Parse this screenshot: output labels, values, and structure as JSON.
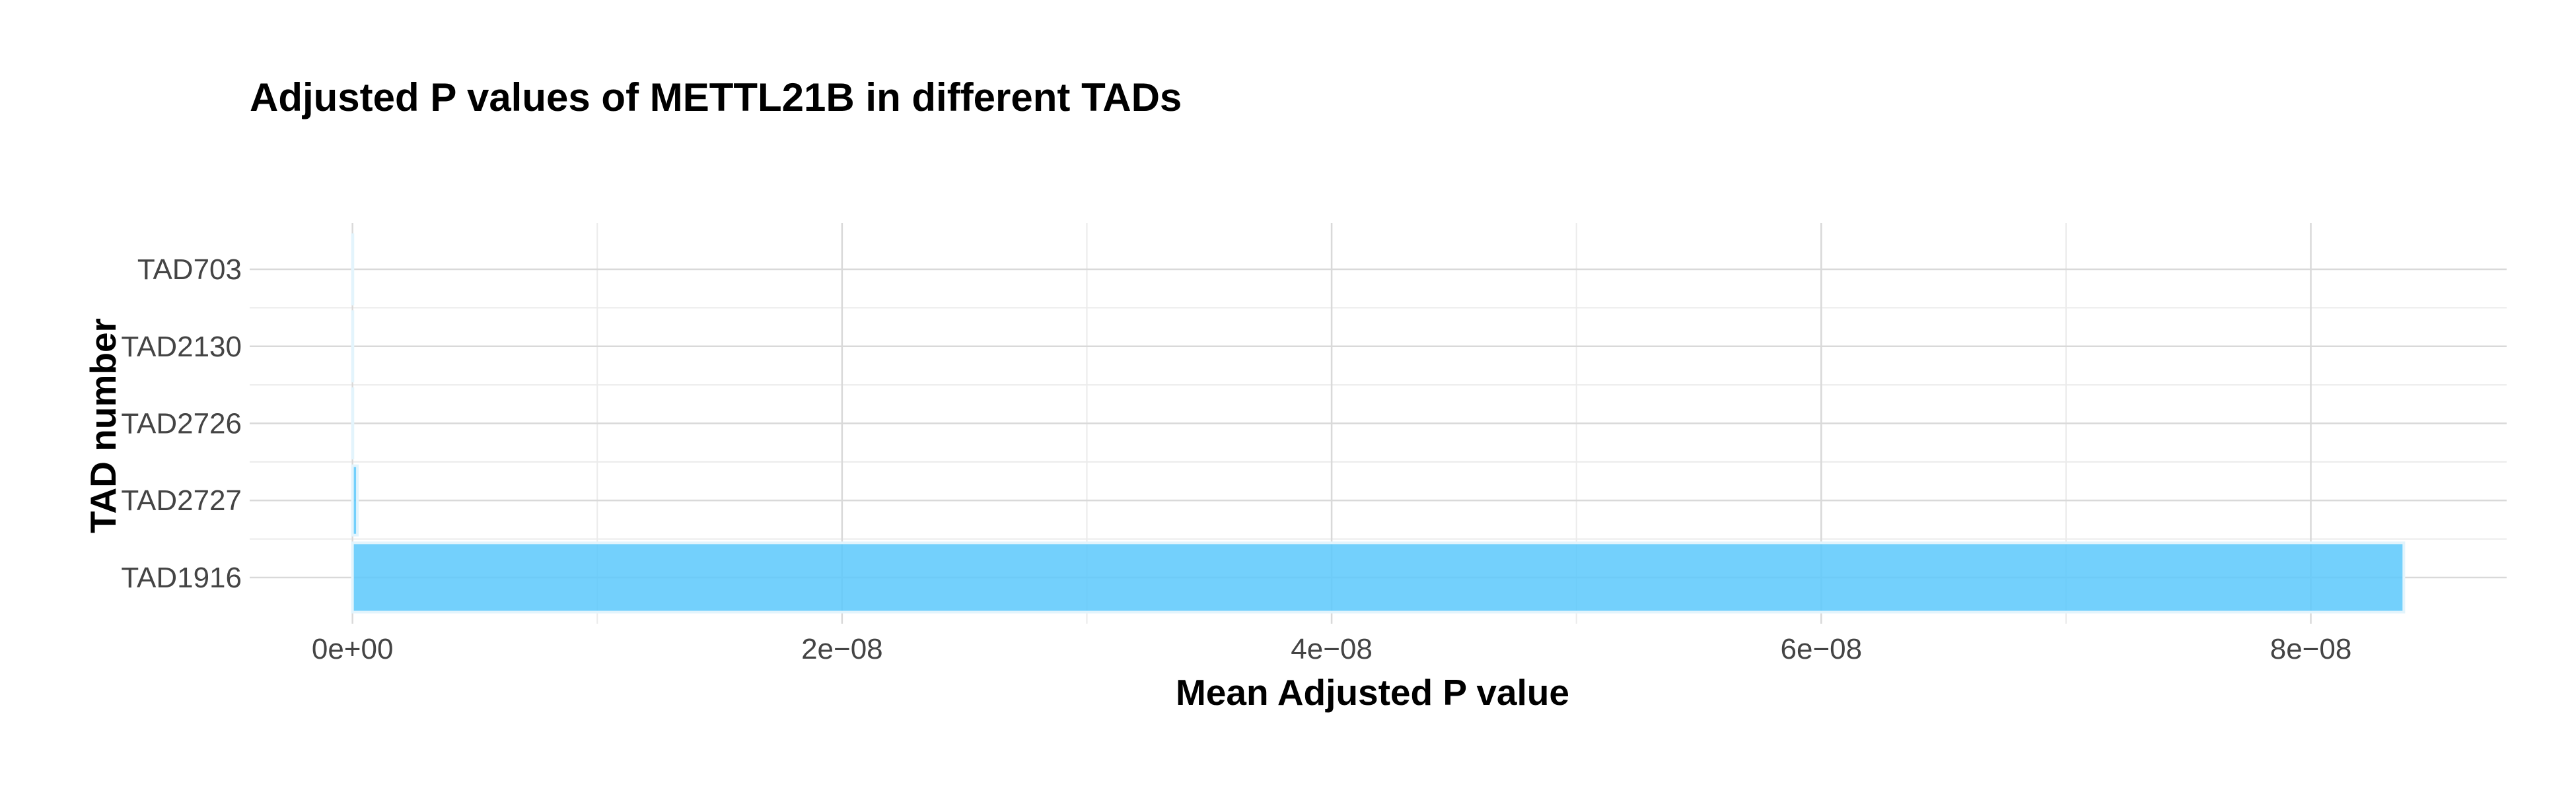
{
  "chart_data": {
    "type": "bar",
    "orientation": "horizontal",
    "title": "Adjusted P values of METTL21B in different TADs",
    "xlabel": "Mean Adjusted P value",
    "ylabel": "TAD number",
    "categories": [
      "TAD1916",
      "TAD2727",
      "TAD2726",
      "TAD2130",
      "TAD703"
    ],
    "values": [
      8.38e-08,
      2e-10,
      1e-11,
      1e-11,
      1e-11
    ],
    "xlim": [
      -4.2e-09,
      8.8e-08
    ],
    "x_ticks": [
      {
        "value": 0,
        "label": "0e+00"
      },
      {
        "value": 2e-08,
        "label": "2e−08"
      },
      {
        "value": 4e-08,
        "label": "4e−08"
      },
      {
        "value": 6e-08,
        "label": "6e−08"
      },
      {
        "value": 8e-08,
        "label": "8e−08"
      }
    ],
    "x_minor_ticks": [
      1e-08,
      3e-08,
      5e-08,
      7e-08
    ],
    "grid": true,
    "colors": {
      "bar_fill": "#5bc8fb",
      "bar_outline": "#e3f4fc"
    }
  }
}
